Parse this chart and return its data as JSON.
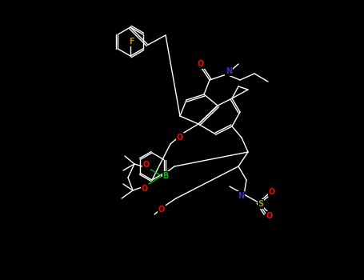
{
  "bg_color": "#000000",
  "bond_color": "#ffffff",
  "atom_colors": {
    "C": "#ffffff",
    "N": "#3333bb",
    "O": "#ff0000",
    "F": "#cc8800",
    "B": "#00bb00",
    "S": "#999900",
    "H": "#ffffff"
  },
  "line_width": 1.0,
  "font_size": 6.5
}
